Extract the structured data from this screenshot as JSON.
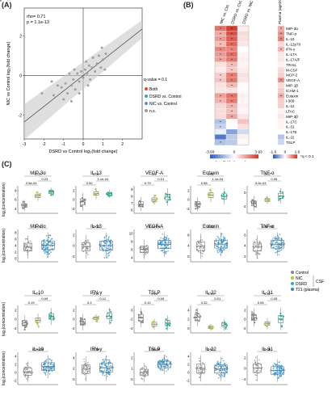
{
  "panels": {
    "a": "(A)",
    "b": "(B)",
    "c": "(C)"
  },
  "colors": {
    "both": "#e8472c",
    "dsrd": "#2ab39e",
    "nic": "#4f93d1",
    "ns": "#9a9a9a",
    "control": "#888888",
    "csf_nic": "#b8c23a",
    "csf_dsrd": "#2bb79d",
    "t21": "#2f8fc7"
  },
  "chart_data": [
    {
      "type": "scatter",
      "id": "A",
      "stats": [
        "rho= 0.71",
        "p = 1.1e-13"
      ],
      "xlabel": "DSRD vs Control log₂(fold change)",
      "ylabel": "NIC vs Control log₂(fold change)",
      "xlim": [
        -3,
        3
      ],
      "ylim": [
        -3.2,
        3.4
      ],
      "xticks": [
        -3,
        -2,
        -1,
        0,
        1,
        2
      ],
      "yticks": [
        -2,
        0,
        2
      ],
      "legend_title": "q-value = 0.1",
      "legend": [
        {
          "label": "Both",
          "color": "#e8472c"
        },
        {
          "label": "DSRD vs. Control",
          "color": "#2ab39e"
        },
        {
          "label": "NIC vs. Control",
          "color": "#4f93d1"
        },
        {
          "label": "n.s.",
          "color": "#9a9a9a"
        }
      ],
      "labeled_points": [
        {
          "label": "MIP-3α",
          "x": 2.4,
          "y": 2.95,
          "group": "Both"
        },
        {
          "label": "TNF-α",
          "x": 1.2,
          "y": 3.1,
          "group": "DSRD"
        },
        {
          "label": "IL-10",
          "x": 1.45,
          "y": 2.7,
          "group": "DSRD"
        },
        {
          "label": "IFN-γ",
          "x": 0.2,
          "y": 2.5,
          "group": "DSRD"
        },
        {
          "label": "Eotaxin",
          "x": 1.4,
          "y": 1.85,
          "group": "Both"
        },
        {
          "label": "IL-13",
          "x": 1.6,
          "y": 1.4,
          "group": "Both"
        },
        {
          "label": "MIP-3β",
          "x": 0.6,
          "y": 1.45,
          "group": "DSRD"
        },
        {
          "label": "I-309",
          "x": 0.7,
          "y": 1.25,
          "group": "DSRD"
        },
        {
          "label": "LTAC",
          "x": 0.55,
          "y": 0.75,
          "group": "DSRD"
        },
        {
          "label": "TARC",
          "x": 1.3,
          "y": 0.65,
          "group": "DSRD"
        },
        {
          "label": "VEGF-A",
          "x": 1.8,
          "y": 0.35,
          "group": "Both"
        },
        {
          "label": "IL-12p70",
          "x": 1.75,
          "y": 0.05,
          "group": "DSRD"
        },
        {
          "label": "MCP-2",
          "x": 1.6,
          "y": -0.15,
          "group": "DSRD"
        },
        {
          "label": "IL-6",
          "x": -0.15,
          "y": 0.5,
          "group": "DSRD"
        },
        {
          "label": "IL-5",
          "x": -2.8,
          "y": -0.2,
          "group": "NIC"
        },
        {
          "label": "IL-17C",
          "x": -1.8,
          "y": -1.9,
          "group": "NIC"
        },
        {
          "label": "IL-4",
          "x": -1.25,
          "y": -1.9,
          "group": "NIC"
        },
        {
          "label": "IL-31",
          "x": -0.8,
          "y": -1.9,
          "group": "NIC"
        },
        {
          "label": "IL-17E",
          "x": 1.25,
          "y": -1.9,
          "group": "n.s."
        },
        {
          "label": "IL-22",
          "x": -0.95,
          "y": -2.9,
          "group": "n.s."
        }
      ],
      "unlabeled_points": [
        [
          -1.6,
          -0.3
        ],
        [
          -1.3,
          -0.5
        ],
        [
          -1.1,
          -0.6
        ],
        [
          -0.9,
          -0.4
        ],
        [
          -0.8,
          -0.9
        ],
        [
          -0.6,
          -0.5
        ],
        [
          -0.5,
          -0.2
        ],
        [
          -0.4,
          -0.7
        ],
        [
          -0.3,
          0.1
        ],
        [
          -0.2,
          -0.3
        ],
        [
          -0.1,
          0.2
        ],
        [
          0,
          -0.1
        ],
        [
          0.1,
          0.3
        ],
        [
          0.2,
          0.1
        ],
        [
          0.3,
          0.5
        ],
        [
          0.35,
          -0.2
        ],
        [
          0.45,
          0.4
        ],
        [
          0.5,
          0.9
        ],
        [
          0.6,
          0.2
        ],
        [
          0.7,
          0.6
        ],
        [
          0.8,
          1
        ],
        [
          0.9,
          0.4
        ],
        [
          1,
          0.8
        ],
        [
          1.1,
          0.3
        ],
        [
          -0.7,
          0.1
        ],
        [
          -1.0,
          -1.2
        ],
        [
          -0.2,
          -0.9
        ],
        [
          0.15,
          0.7
        ],
        [
          0.25,
          -0.5
        ],
        [
          -1.5,
          -1
        ],
        [
          -0.45,
          0.3
        ],
        [
          1.15,
          1.1
        ],
        [
          0.95,
          1.4
        ],
        [
          -2.1,
          -0.9
        ],
        [
          -0.6,
          -1.3
        ]
      ]
    },
    {
      "type": "heatmap",
      "id": "B",
      "columns": [
        "NIC vs. Ctrl.",
        "DSRD vs. Ctrl.",
        "DSRD vs. NIC"
      ],
      "plasma_column": "Plasma (age20) T21 vs. D21",
      "rows": [
        "MIP-3α",
        "TNF-α",
        "IL-10",
        "IL-12p70",
        "IFN-γ",
        "IL-17A",
        "IL-17A/F",
        "TRAIL",
        "M-CSF",
        "MCP-2",
        "VEGF-A",
        "MIP-1β",
        "ICAM-1",
        "Eotaxin",
        "I-309",
        "IL-12",
        "LTAC",
        "MIP-3β",
        "IL-17C",
        "IL-31",
        "IL-17E",
        "IL-22",
        "TSLP"
      ],
      "values": [
        [
          2.8,
          3.9,
          0.3
        ],
        [
          1.7,
          3.5,
          0.7
        ],
        [
          2.0,
          3.2,
          0.6
        ],
        [
          1.3,
          3.0,
          0.5
        ],
        [
          2.4,
          2.4,
          0.0
        ],
        [
          2.0,
          2.9,
          0.2
        ],
        [
          1.9,
          2.7,
          0.3
        ],
        [
          0.6,
          1.3,
          0.2
        ],
        [
          0.4,
          1.1,
          0.4
        ],
        [
          1.0,
          2.6,
          0.6
        ],
        [
          1.2,
          2.7,
          0.5
        ],
        [
          0.6,
          1.4,
          0.1
        ],
        [
          0.5,
          0.6,
          0.1
        ],
        [
          1.9,
          2.8,
          0.3
        ],
        [
          1.5,
          2.6,
          0.2
        ],
        [
          0.8,
          1.5,
          0.3
        ],
        [
          0.7,
          1.3,
          0.2
        ],
        [
          0.7,
          1.8,
          0.5
        ],
        [
          -1.5,
          0.1,
          1.2
        ],
        [
          -1.1,
          -0.1,
          0.6
        ],
        [
          -0.4,
          -2.3,
          -0.9
        ],
        [
          -3.3,
          -1.3,
          0.3
        ],
        [
          -1.5,
          -1.3,
          0.1
        ]
      ],
      "sig": [
        [
          1,
          1,
          0
        ],
        [
          1,
          1,
          0
        ],
        [
          1,
          1,
          0
        ],
        [
          1,
          1,
          0
        ],
        [
          1,
          1,
          0
        ],
        [
          1,
          1,
          0
        ],
        [
          1,
          1,
          0
        ],
        [
          0,
          1,
          0
        ],
        [
          0,
          1,
          0
        ],
        [
          1,
          1,
          0
        ],
        [
          1,
          1,
          0
        ],
        [
          0,
          1,
          0
        ],
        [
          0,
          0,
          0
        ],
        [
          1,
          1,
          0
        ],
        [
          1,
          1,
          0
        ],
        [
          0,
          1,
          0
        ],
        [
          0,
          1,
          0
        ],
        [
          0,
          1,
          0
        ],
        [
          1,
          0,
          0
        ],
        [
          1,
          0,
          0
        ],
        [
          0,
          0,
          0
        ],
        [
          0,
          0,
          0
        ],
        [
          1,
          0,
          0
        ]
      ],
      "plasma_values": [
        0.7,
        0.9,
        1.0,
        0.3,
        0.6,
        0.2,
        0.2,
        0.1,
        0.3,
        0.4,
        0.9,
        0.3,
        0.4,
        0.7,
        0.4,
        0.4,
        0.1,
        0.2,
        0.1,
        0.1,
        0.0,
        -0.6,
        -0.4
      ],
      "plasma_sig": [
        1,
        1,
        1,
        0,
        1,
        0,
        0,
        0,
        0,
        0,
        1,
        0,
        0,
        1,
        0,
        0,
        0,
        0,
        0,
        0,
        0,
        0,
        0
      ],
      "scale_label": "log₂(fold change)",
      "main_scale": [
        -3.93,
        0,
        3.93
      ],
      "main_tick_labels": [
        "-3.93",
        "0",
        "3.93"
      ],
      "plasma_scale": [
        -1.6,
        0,
        1.6
      ],
      "plasma_tick_labels": [
        "-1.6",
        "0",
        "1.6"
      ],
      "sig_label": "*q < 0.1"
    },
    {
      "type": "box",
      "id": "C",
      "ylabel": "log₂(concentration)",
      "legend": [
        {
          "label": "Control",
          "color": "#888888"
        },
        {
          "label": "NIC",
          "color": "#b8c23a"
        },
        {
          "label": "DSRD",
          "color": "#2bb79d"
        },
        {
          "label": "T21 (plasma)",
          "color": "#2f8fc7"
        }
      ],
      "legend_group": "CSF",
      "csf_row1": [
        {
          "title": "MIP-3α",
          "yticks": [
            "4",
            "6",
            "8"
          ],
          "p": [
            "0.02",
            "0.23",
            "2.5e-04"
          ],
          "groups": [
            [
              2.5,
              0.9
            ],
            [
              5.6,
              0.8
            ],
            [
              6.8,
              0.7
            ]
          ]
        },
        {
          "title": "IL-13",
          "yticks": [
            "-2",
            "0",
            "2"
          ],
          "p": [
            "0.02",
            "1.1e-04",
            "0.52"
          ],
          "groups": [
            [
              -1.0,
              1.3
            ],
            [
              1.4,
              0.8
            ],
            [
              1.3,
              0.6
            ]
          ]
        },
        {
          "title": "VEGF-A",
          "yticks": [
            "6",
            "7",
            "8",
            "9"
          ],
          "p": [
            "0.1",
            "0.01",
            "0.79"
          ],
          "groups": [
            [
              6.9,
              0.4
            ],
            [
              7.4,
              0.3
            ],
            [
              7.7,
              0.5
            ]
          ]
        },
        {
          "title": "Eotaxin",
          "yticks": [
            "-2",
            "0",
            "2"
          ],
          "p": [
            "0.02",
            "1.1e-04",
            "0.58"
          ],
          "groups": [
            [
              -1.2,
              0.9
            ],
            [
              1.0,
              0.9
            ],
            [
              0.7,
              1.0
            ]
          ]
        },
        {
          "title": "TNF-α",
          "yticks": [
            "-2",
            "0"
          ],
          "p": [
            "0.02",
            "0.05",
            "3.2e-03"
          ],
          "groups": [
            [
              -1.5,
              0.9
            ],
            [
              -0.7,
              0.5
            ],
            [
              0.3,
              0.9
            ]
          ]
        }
      ],
      "plasma_row1": [
        {
          "title": "MIP-3α",
          "yticks": [
            "0",
            "2",
            "4",
            "6",
            "8"
          ],
          "p": "0.03",
          "groups": [
            [
              3.6,
              1.2
            ],
            [
              4.0,
              1.3
            ]
          ]
        },
        {
          "title": "IL-13",
          "yticks": [
            "-2",
            "0",
            "2"
          ],
          "p": "0.03",
          "groups": [
            [
              -0.5,
              1.0
            ],
            [
              -0.3,
              1.1
            ]
          ]
        },
        {
          "title": "VEGF-A",
          "yticks": [
            "4",
            "6",
            "8",
            "10"
          ],
          "p": "6.4e-06",
          "groups": [
            [
              5.0,
              0.8
            ],
            [
              5.8,
              1.0
            ]
          ]
        },
        {
          "title": "Eotaxin",
          "yticks": [
            "0",
            "4",
            "8"
          ],
          "p": "0.02",
          "groups": [
            [
              3.5,
              1.5
            ],
            [
              4.0,
              1.4
            ]
          ]
        },
        {
          "title": "TNF-α",
          "yticks": [
            "2",
            "4",
            "6"
          ],
          "p": "1.4e-03",
          "groups": [
            [
              3.0,
              0.8
            ],
            [
              3.4,
              0.8
            ]
          ]
        }
      ],
      "csf_row2": [
        {
          "title": "IL-10",
          "yticks": [
            "-2",
            "0",
            "2"
          ],
          "p": [
            "0.1",
            "0.09",
            "0.19"
          ],
          "groups": [
            [
              -1.2,
              0.8
            ],
            [
              -0.6,
              0.7
            ],
            [
              0.2,
              0.9
            ]
          ]
        },
        {
          "title": "IFN-γ",
          "yticks": [
            "-2",
            "0",
            "2"
          ],
          "p": [
            "0.11",
            "0.12",
            "0.3"
          ],
          "groups": [
            [
              -1.0,
              1.0
            ],
            [
              0.0,
              0.5
            ],
            [
              0.5,
              1.0
            ]
          ]
        },
        {
          "title": "TSLP",
          "yticks": [
            "-4",
            "-2",
            "0"
          ],
          "p": [
            "0.13",
            "0.05",
            "0.12"
          ],
          "groups": [
            [
              -1.3,
              0.9
            ],
            [
              -2.5,
              0.5
            ],
            [
              -2.3,
              0.7
            ]
          ]
        },
        {
          "title": "IL-22",
          "yticks": [
            "0",
            "2",
            "4"
          ],
          "p": [
            "0.43",
            "0.01",
            "0.32"
          ],
          "groups": [
            [
              2.6,
              0.8
            ],
            [
              0.8,
              0.3
            ],
            [
              1.2,
              0.5
            ]
          ]
        },
        {
          "title": "IL-31",
          "yticks": [
            "-2",
            "0",
            "2"
          ],
          "p": [
            "0.42",
            "0.05",
            "0.05"
          ],
          "groups": [
            [
              -0.2,
              0.8
            ],
            [
              -1.3,
              0.5
            ],
            [
              -0.5,
              1.0
            ]
          ]
        }
      ],
      "plasma_row2": [
        {
          "title": "IL-10",
          "yticks": [
            "-2",
            "0",
            "2",
            "4"
          ],
          "p": "4.2e-06",
          "groups": [
            [
              -0.8,
              0.8
            ],
            [
              0.0,
              0.9
            ]
          ]
        },
        {
          "title": "IFN-γ",
          "yticks": [
            "0",
            "2",
            "4"
          ],
          "p": "0.39",
          "groups": [
            [
              2.3,
              0.9
            ],
            [
              2.5,
              0.9
            ]
          ]
        },
        {
          "title": "TSLP",
          "yticks": [
            "0",
            "1",
            "2"
          ],
          "p": "1.9e-09",
          "groups": [
            [
              0.4,
              0.3
            ],
            [
              0.9,
              0.3
            ]
          ]
        },
        {
          "title": "IL-22",
          "yticks": [
            "-2",
            "0",
            "2",
            "4"
          ],
          "p": "0.51",
          "groups": [
            [
              0.5,
              1.1
            ],
            [
              0.4,
              1.0
            ]
          ]
        },
        {
          "title": "IL-31",
          "yticks": [
            "-2",
            "0",
            "2"
          ],
          "p": "0.09",
          "groups": [
            [
              -0.8,
              0.8
            ],
            [
              -1.1,
              0.7
            ]
          ]
        }
      ]
    }
  ]
}
